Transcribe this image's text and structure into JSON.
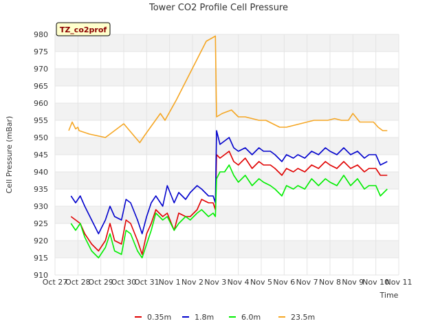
{
  "chart_data": {
    "type": "line",
    "title": "Tower CO2 Profile Cell Pressure",
    "xlabel": "Time",
    "ylabel": "Cell Pressure (mBar)",
    "site_tag": "TZ_co2prof",
    "ylim": [
      910,
      980
    ],
    "yticks": [
      "910",
      "915",
      "920",
      "925",
      "930",
      "935",
      "940",
      "945",
      "950",
      "955",
      "960",
      "965",
      "970",
      "975",
      "980"
    ],
    "xlim": [
      0,
      15
    ],
    "xticks": [
      "Oct 27",
      "Oct 28",
      "Oct 29",
      "Oct 30",
      "Oct 31",
      "Nov 1",
      "Nov 2",
      "Nov 3",
      "Nov 4",
      "Nov 5",
      "Nov 6",
      "Nov 7",
      "Nov 8",
      "Nov 9",
      "Nov 10",
      "Nov 11"
    ],
    "grid": true,
    "legend_position": "bottom",
    "series": [
      {
        "name": "0.35m",
        "color": "#e00000",
        "x": [
          0.7,
          0.9,
          1.1,
          1.3,
          1.6,
          1.9,
          2.2,
          2.4,
          2.6,
          2.9,
          3.1,
          3.3,
          3.6,
          3.8,
          4.0,
          4.2,
          4.4,
          4.7,
          4.9,
          5.2,
          5.4,
          5.7,
          5.9,
          6.2,
          6.4,
          6.7,
          6.9,
          7.0,
          7.05,
          7.2,
          7.4,
          7.6,
          7.8,
          8.0,
          8.3,
          8.6,
          8.9,
          9.1,
          9.4,
          9.6,
          9.9,
          10.1,
          10.4,
          10.6,
          10.9,
          11.2,
          11.5,
          11.8,
          12.0,
          12.3,
          12.6,
          12.9,
          13.2,
          13.5,
          13.7,
          14.0,
          14.2,
          14.5
        ],
        "y": [
          927,
          926,
          925,
          922,
          919,
          917,
          920,
          925,
          920,
          919,
          926,
          925,
          920,
          916,
          922,
          925,
          929,
          927,
          928,
          923,
          928,
          927,
          927,
          929,
          932,
          931,
          931,
          929,
          945,
          944,
          945,
          946,
          943,
          942,
          944,
          941,
          943,
          942,
          942,
          941,
          939,
          941,
          940,
          941,
          940,
          942,
          941,
          943,
          942,
          941,
          943,
          941,
          942,
          940,
          941,
          941,
          939,
          939
        ]
      },
      {
        "name": "1.8m",
        "color": "#0000cc",
        "x": [
          0.7,
          0.9,
          1.1,
          1.3,
          1.6,
          1.9,
          2.2,
          2.4,
          2.6,
          2.9,
          3.1,
          3.3,
          3.6,
          3.8,
          4.0,
          4.2,
          4.4,
          4.7,
          4.9,
          5.2,
          5.4,
          5.7,
          5.9,
          6.2,
          6.4,
          6.7,
          6.9,
          7.0,
          7.05,
          7.2,
          7.4,
          7.6,
          7.8,
          8.0,
          8.3,
          8.6,
          8.9,
          9.1,
          9.4,
          9.6,
          9.9,
          10.1,
          10.4,
          10.6,
          10.9,
          11.2,
          11.5,
          11.8,
          12.0,
          12.3,
          12.6,
          12.9,
          13.2,
          13.5,
          13.7,
          14.0,
          14.2,
          14.5
        ],
        "y": [
          933,
          931,
          933,
          930,
          926,
          922,
          926,
          930,
          927,
          926,
          932,
          931,
          926,
          922,
          927,
          931,
          933,
          930,
          936,
          931,
          934,
          932,
          934,
          936,
          935,
          933,
          933,
          931,
          952,
          948,
          949,
          950,
          947,
          946,
          947,
          945,
          947,
          946,
          946,
          945,
          943,
          945,
          944,
          945,
          944,
          946,
          945,
          947,
          946,
          945,
          947,
          945,
          946,
          944,
          945,
          945,
          942,
          943
        ]
      },
      {
        "name": "6.0m",
        "color": "#00ee00",
        "x": [
          0.7,
          0.9,
          1.1,
          1.3,
          1.6,
          1.9,
          2.2,
          2.4,
          2.6,
          2.9,
          3.1,
          3.3,
          3.6,
          3.8,
          4.0,
          4.2,
          4.4,
          4.7,
          4.9,
          5.2,
          5.4,
          5.7,
          5.9,
          6.2,
          6.4,
          6.7,
          6.9,
          7.0,
          7.05,
          7.2,
          7.4,
          7.6,
          7.8,
          8.0,
          8.3,
          8.6,
          8.9,
          9.1,
          9.4,
          9.6,
          9.9,
          10.1,
          10.4,
          10.6,
          10.9,
          11.2,
          11.5,
          11.8,
          12.0,
          12.3,
          12.6,
          12.9,
          13.2,
          13.5,
          13.7,
          14.0,
          14.2,
          14.5
        ],
        "y": [
          925,
          923,
          925,
          921,
          917,
          915,
          918,
          922,
          917,
          916,
          923,
          922,
          917,
          915,
          919,
          923,
          928,
          926,
          927,
          923,
          925,
          927,
          926,
          928,
          929,
          927,
          928,
          927,
          938,
          940,
          940,
          942,
          939,
          937,
          939,
          936,
          938,
          937,
          936,
          935,
          933,
          936,
          935,
          936,
          935,
          938,
          936,
          938,
          937,
          936,
          939,
          936,
          938,
          935,
          936,
          936,
          933,
          935
        ]
      },
      {
        "name": "23.5m",
        "color": "#f5a623",
        "x": [
          0.6,
          0.75,
          0.9,
          1.0,
          1.05,
          1.5,
          2.2,
          2.4,
          3.0,
          3.7,
          3.9,
          4.6,
          4.8,
          5.3,
          6.6,
          7.0,
          7.05,
          7.3,
          7.5,
          7.7,
          8.0,
          8.3,
          8.6,
          8.9,
          9.2,
          9.5,
          9.8,
          10.1,
          10.4,
          10.7,
          11.0,
          11.3,
          11.6,
          11.9,
          12.2,
          12.5,
          12.8,
          13.0,
          13.3,
          13.6,
          13.9,
          14.1,
          14.3,
          14.5
        ],
        "y": [
          952,
          954.5,
          952.5,
          953,
          952,
          951,
          950,
          951,
          954,
          948.5,
          950.5,
          957,
          955,
          961,
          978,
          979.5,
          956,
          957,
          957.5,
          958,
          956,
          956,
          955.5,
          955,
          955,
          954,
          953,
          953,
          953.5,
          954,
          954.5,
          955,
          955,
          955,
          955.5,
          955,
          955,
          957,
          954.5,
          954.5,
          954.5,
          953,
          952,
          952
        ]
      }
    ]
  }
}
